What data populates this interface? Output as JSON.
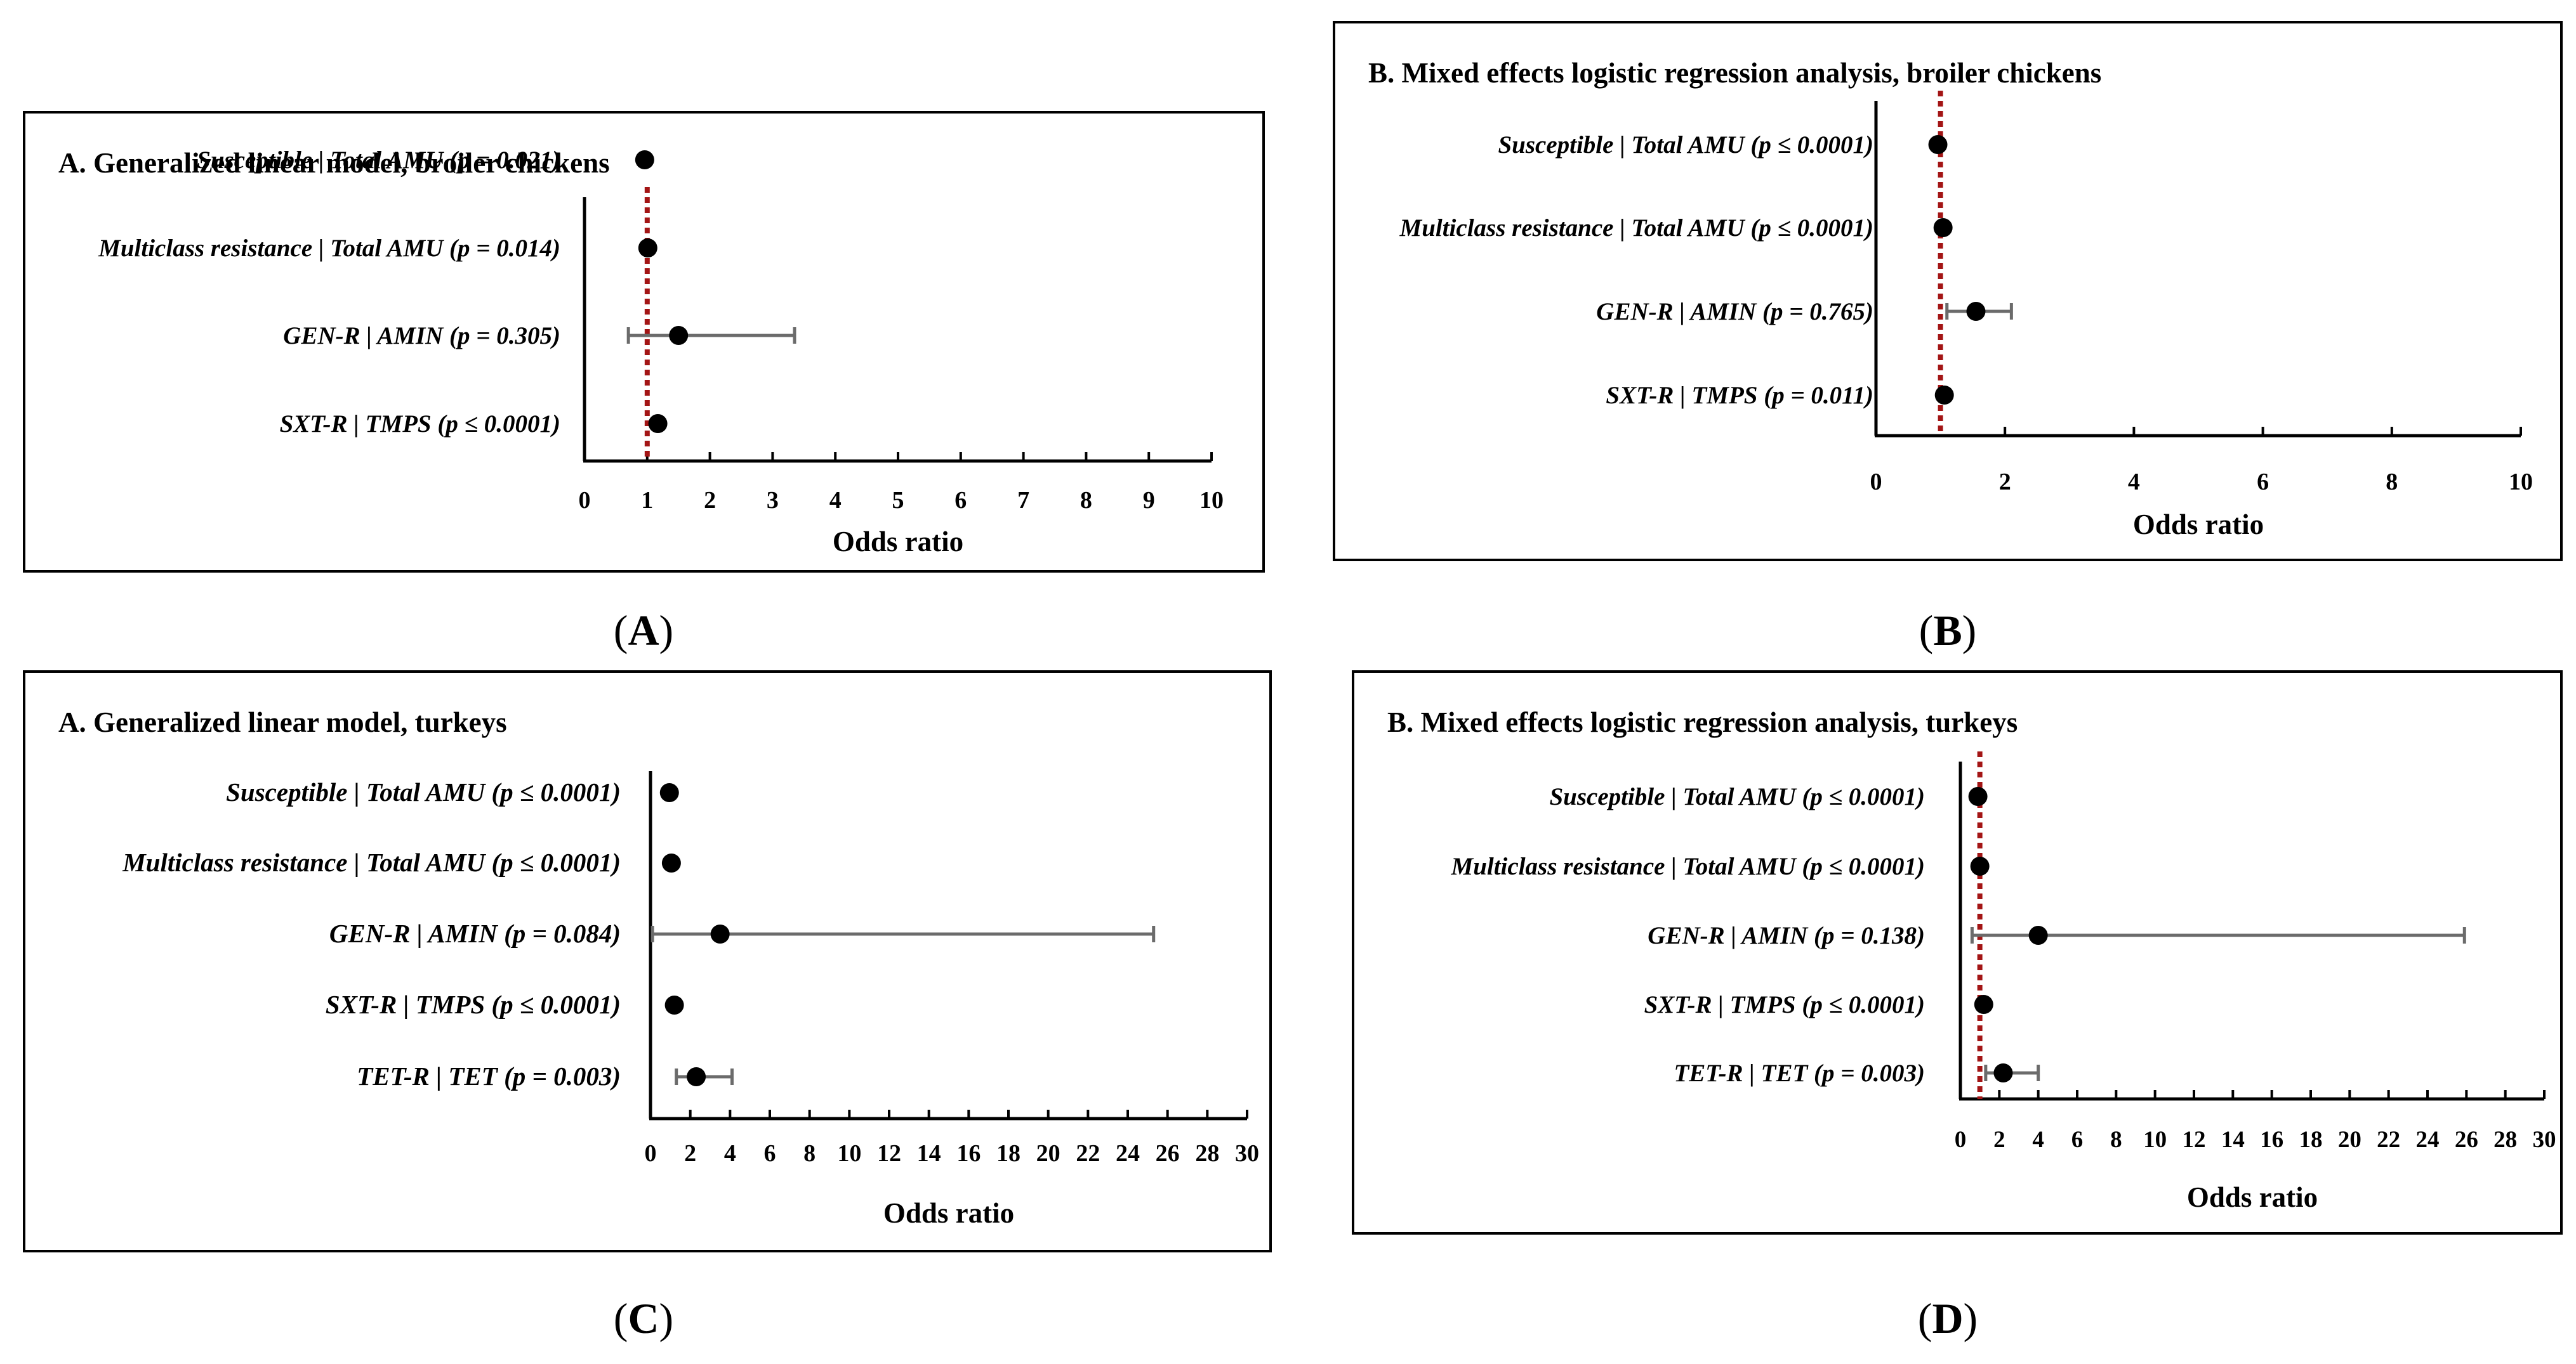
{
  "chart_data": [
    {
      "type": "forest",
      "panel_caption": "A",
      "title": "A. Generalized linear model, broiler chickens",
      "xlabel": "Odds ratio",
      "xlim": [
        0,
        10
      ],
      "xticks": [
        0,
        1,
        2,
        3,
        4,
        5,
        6,
        7,
        8,
        9,
        10
      ],
      "reference_line": 1,
      "rows": [
        {
          "label": "Susceptible | Total AMU  (p = 0.021)",
          "or": 0.96,
          "ci": [
            0.93,
            0.99
          ]
        },
        {
          "label": "Multiclass resistance | Total AMU (p = 0.014)",
          "or": 1.01,
          "ci": [
            0.98,
            1.04
          ]
        },
        {
          "label": "GEN-R | AMIN  (p = 0.305)",
          "or": 1.5,
          "ci": [
            0.7,
            3.35
          ]
        },
        {
          "label": "SXT-R | TMPS  (p ≤ 0.0001)",
          "or": 1.17,
          "ci": [
            1.12,
            1.22
          ]
        }
      ]
    },
    {
      "type": "forest",
      "panel_caption": "B",
      "title": "B. Mixed effects logistic regression analysis, broiler chickens",
      "xlabel": "Odds ratio",
      "xlim": [
        0,
        10
      ],
      "xticks": [
        0,
        2,
        4,
        6,
        8,
        10
      ],
      "reference_line": 1,
      "rows": [
        {
          "label": "Susceptible | Total AMU  (p ≤ 0.0001)",
          "or": 0.96,
          "ci": [
            0.93,
            0.99
          ]
        },
        {
          "label": "Multiclass resistance | Total AMU  (p ≤ 0.0001)",
          "or": 1.04,
          "ci": [
            1.01,
            1.07
          ]
        },
        {
          "label": "GEN-R | AMIN (p = 0.765)",
          "or": 1.55,
          "ci": [
            1.1,
            2.1
          ]
        },
        {
          "label": "SXT-R | TMPS  (p = 0.011)",
          "or": 1.06,
          "ci": [
            1.02,
            1.1
          ]
        }
      ]
    },
    {
      "type": "forest",
      "panel_caption": "C",
      "title": "A. Generalized linear model, turkeys",
      "xlabel": "Odds ratio",
      "xlim": [
        0,
        30
      ],
      "xticks": [
        0,
        2,
        4,
        6,
        8,
        10,
        12,
        14,
        16,
        18,
        20,
        22,
        24,
        26,
        28,
        30
      ],
      "reference_line": null,
      "rows": [
        {
          "label": "Susceptible | Total AMU  (p ≤ 0.0001)",
          "or": 0.95,
          "ci": [
            0.9,
            1.0
          ]
        },
        {
          "label": "Multiclass resistance | Total AMU (p ≤ 0.0001)",
          "or": 1.05,
          "ci": [
            1.0,
            1.1
          ]
        },
        {
          "label": "GEN-R | AMIN (p = 0.084)",
          "or": 3.5,
          "ci": [
            0.1,
            25.3
          ]
        },
        {
          "label": "SXT-R | TMPS (p ≤ 0.0001)",
          "or": 1.2,
          "ci": [
            1.1,
            1.3
          ]
        },
        {
          "label": "TET-R | TET (p = 0.003)",
          "or": 2.3,
          "ci": [
            1.3,
            4.1
          ]
        }
      ]
    },
    {
      "type": "forest",
      "panel_caption": "D",
      "title": "B. Mixed effects logistic regression analysis, turkeys",
      "xlabel": "Odds ratio",
      "xlim": [
        0,
        30
      ],
      "xticks": [
        0,
        2,
        4,
        6,
        8,
        10,
        12,
        14,
        16,
        18,
        20,
        22,
        24,
        26,
        28,
        30
      ],
      "reference_line": 1,
      "rows": [
        {
          "label": "Susceptible | Total AMU  (p ≤ 0.0001)",
          "or": 0.9,
          "ci": [
            0.85,
            0.95
          ]
        },
        {
          "label": "Multiclass resistance | Total AMU (p ≤ 0.0001)",
          "or": 1.0,
          "ci": [
            0.95,
            1.05
          ]
        },
        {
          "label": "GEN-R | AMIN (p = 0.138)",
          "or": 4.0,
          "ci": [
            0.6,
            25.9
          ]
        },
        {
          "label": "SXT-R | TMPS (p ≤ 0.0001)",
          "or": 1.2,
          "ci": [
            1.1,
            1.3
          ]
        },
        {
          "label": "TET-R | TET (p = 0.003)",
          "or": 2.2,
          "ci": [
            1.3,
            4.0
          ]
        }
      ]
    }
  ],
  "colors": {
    "reference_line": "#a31515",
    "errorbar": "#6b6b6b",
    "point": "#000000",
    "axis": "#000000"
  }
}
